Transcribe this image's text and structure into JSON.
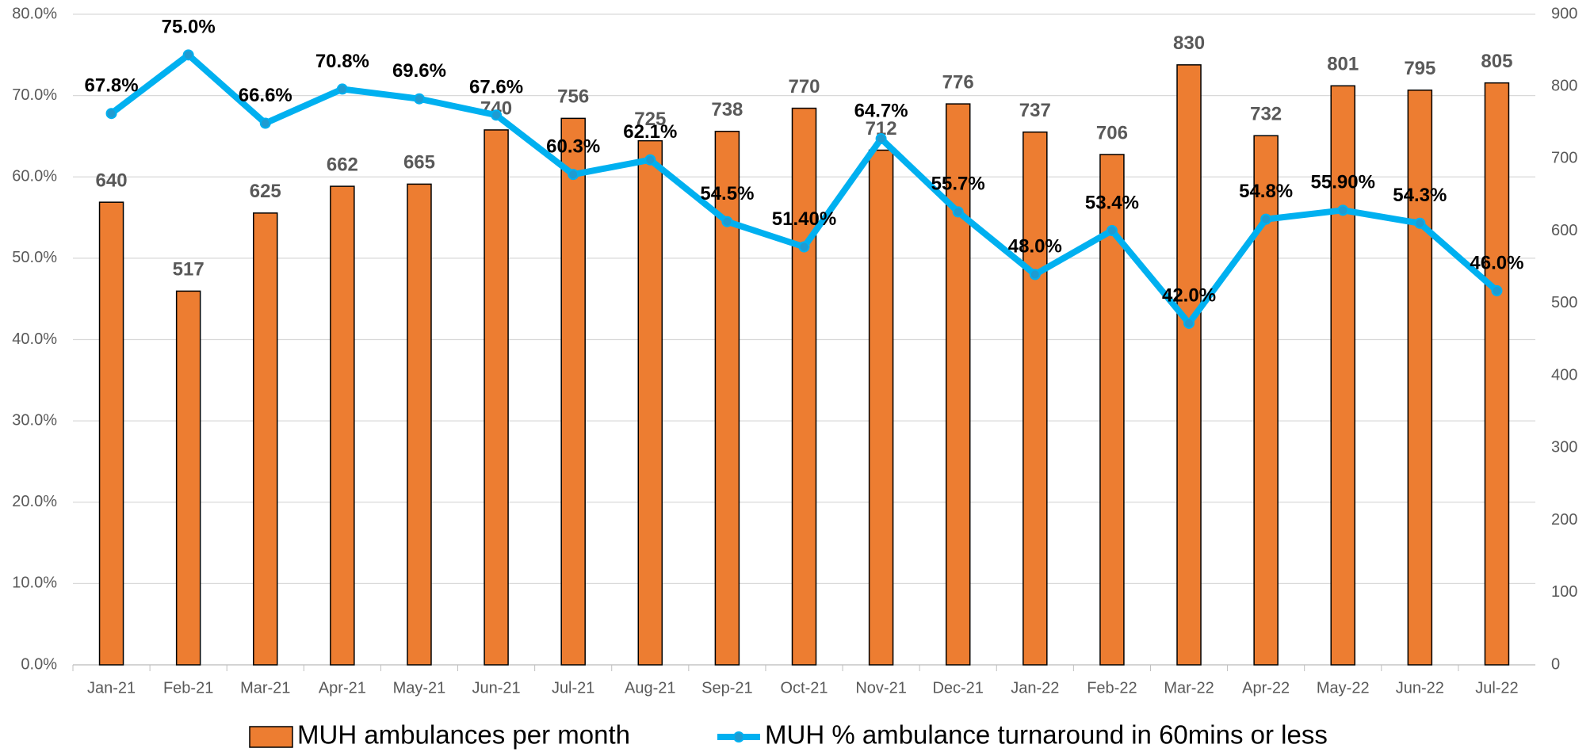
{
  "chart_data": {
    "type": "combo",
    "categories": [
      "Jan-21",
      "Feb-21",
      "Mar-21",
      "Apr-21",
      "May-21",
      "Jun-21",
      "Jul-21",
      "Aug-21",
      "Sep-21",
      "Oct-21",
      "Nov-21",
      "Dec-21",
      "Jan-22",
      "Feb-22",
      "Mar-22",
      "Apr-22",
      "May-22",
      "Jun-22",
      "Jul-22"
    ],
    "series": [
      {
        "name": "MUH ambulances per month",
        "type": "bar",
        "axis": "y2",
        "color": "#ED7D31",
        "values": [
          640,
          517,
          625,
          662,
          665,
          740,
          756,
          725,
          738,
          770,
          712,
          776,
          737,
          706,
          830,
          732,
          801,
          795,
          805
        ]
      },
      {
        "name": "MUH % ambulance turnaround in 60mins or less",
        "type": "line",
        "axis": "y",
        "color": "#00B0F0",
        "values": [
          67.8,
          75.0,
          66.6,
          70.8,
          69.6,
          67.6,
          60.3,
          62.1,
          54.5,
          51.4,
          64.7,
          55.7,
          48.0,
          53.4,
          42.0,
          54.8,
          55.9,
          54.3,
          46.0
        ],
        "value_labels": [
          "67.8%",
          "75.0%",
          "66.6%",
          "70.8%",
          "69.6%",
          "67.6%",
          "60.3%",
          "62.1%",
          "54.5%",
          "51.40%",
          "64.7%",
          "55.7%",
          "48.0%",
          "53.4%",
          "42.0%",
          "54.8%",
          "55.90%",
          "54.3%",
          "46.0%"
        ]
      }
    ],
    "ylim": [
      0,
      80
    ],
    "yticks": [
      {
        "value": 0,
        "label": "0.0%"
      },
      {
        "value": 10,
        "label": "10.0%"
      },
      {
        "value": 20,
        "label": "20.0%"
      },
      {
        "value": 30,
        "label": "30.0%"
      },
      {
        "value": 40,
        "label": "40.0%"
      },
      {
        "value": 50,
        "label": "50.0%"
      },
      {
        "value": 60,
        "label": "60.0%"
      },
      {
        "value": 70,
        "label": "70.0%"
      },
      {
        "value": 80,
        "label": "80.0%"
      }
    ],
    "y2lim": [
      0,
      900
    ],
    "y2ticks": [
      0,
      100,
      200,
      300,
      400,
      500,
      600,
      700,
      800,
      900
    ],
    "grid": true,
    "legend": "bottom"
  }
}
